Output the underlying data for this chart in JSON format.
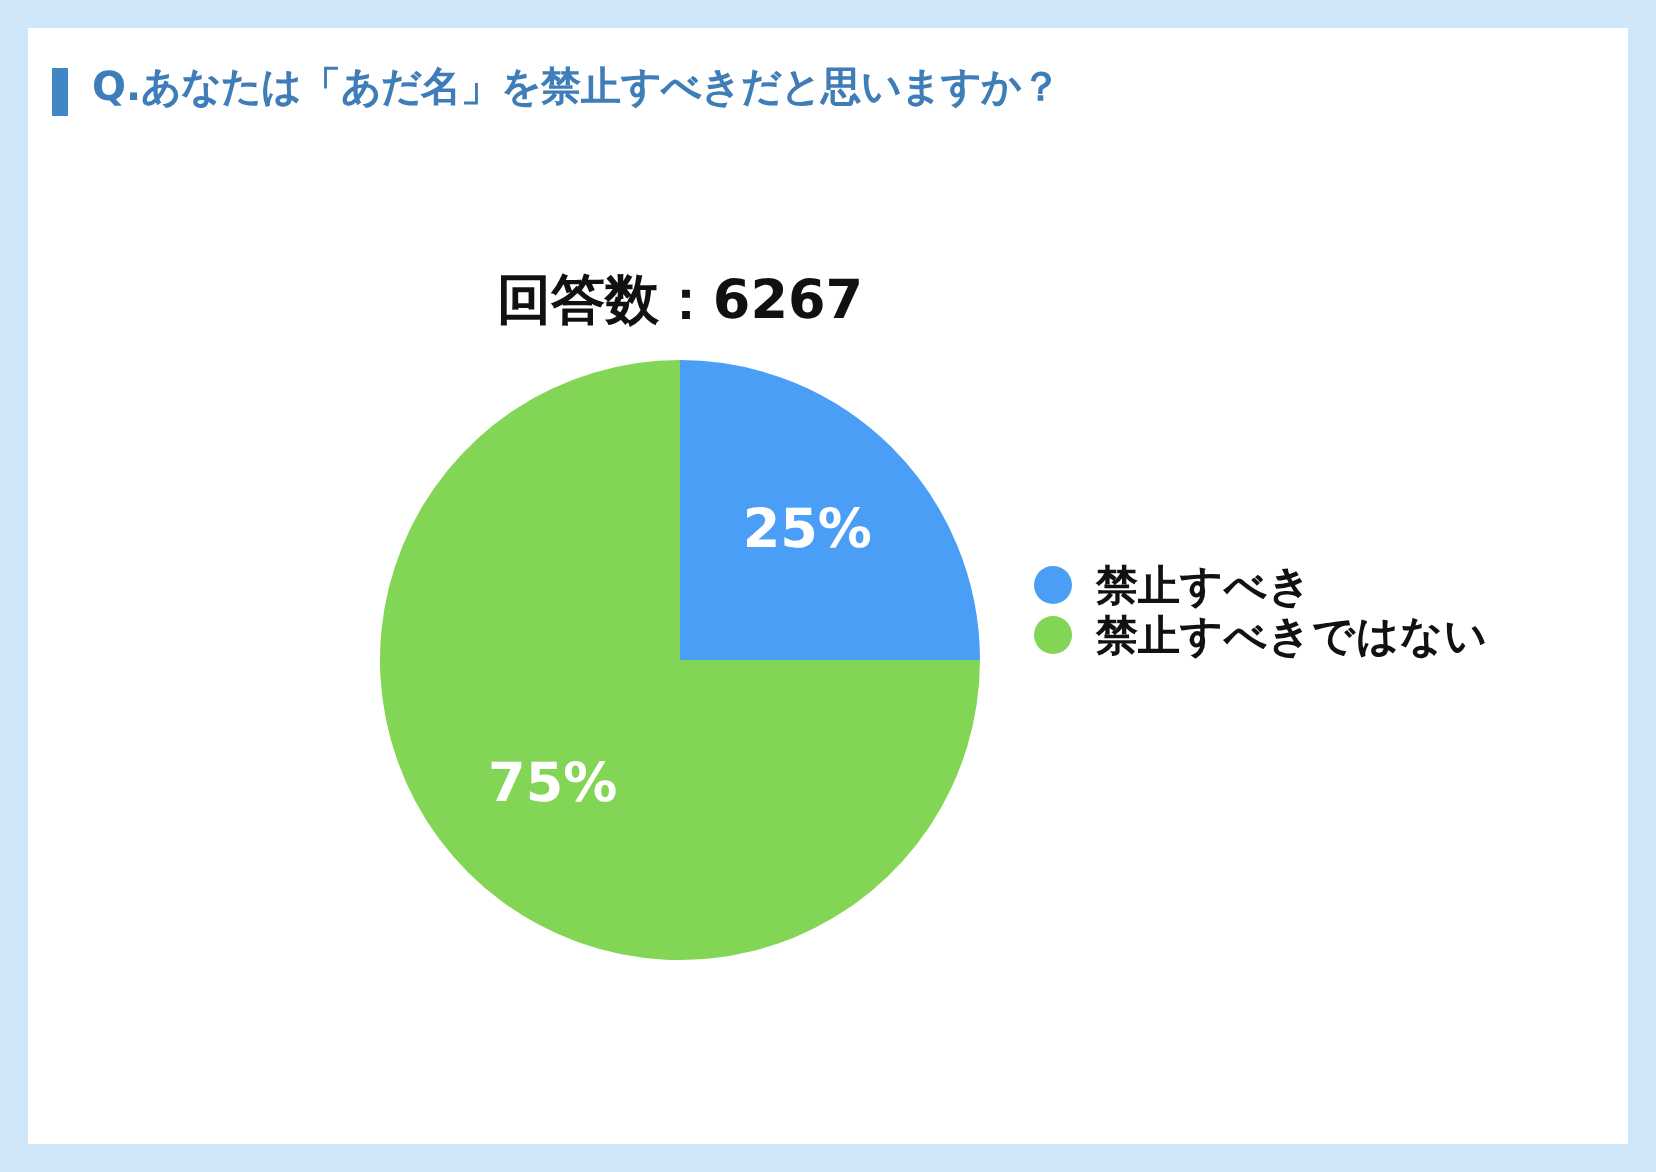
{
  "chart_data": {
    "type": "pie",
    "title": "Q.あなたは「あだ名」を禁止すべきだと思いますか？",
    "subtitle": "回答数：6267",
    "categories": [
      "禁止すべき",
      "禁止すべきではない"
    ],
    "values": [
      25,
      75
    ],
    "colors": [
      "#4a9ef5",
      "#82d555"
    ],
    "value_labels": [
      "25%",
      "75%"
    ],
    "legend": "right"
  }
}
